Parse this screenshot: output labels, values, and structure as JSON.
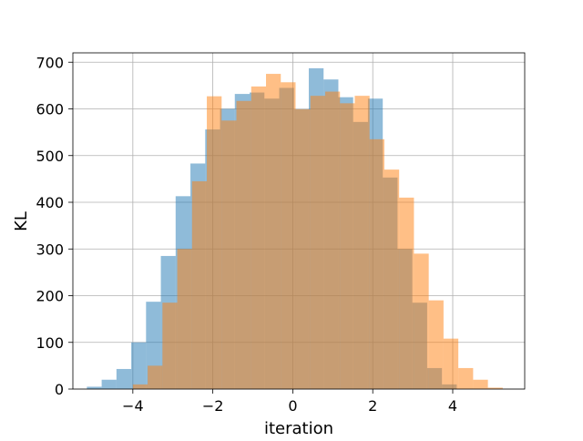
{
  "chart_data": {
    "type": "histogram",
    "title": "",
    "xlabel": "iteration",
    "ylabel": "KL",
    "xlim": [
      -5.5,
      5.8
    ],
    "ylim": [
      0,
      720
    ],
    "xticks": [
      -4,
      -2,
      0,
      2,
      4
    ],
    "xtick_labels": [
      "−4",
      "−2",
      "0",
      "2",
      "4"
    ],
    "yticks": [
      0,
      100,
      200,
      300,
      400,
      500,
      600,
      700
    ],
    "ytick_labels": [
      "0",
      "100",
      "200",
      "300",
      "400",
      "500",
      "600",
      "700"
    ],
    "grid": true,
    "legend": false,
    "series": [
      {
        "color": "#1f77b4",
        "opacity": 0.5,
        "bins": [
          [
            -5.15,
            -4.78,
            5
          ],
          [
            -4.78,
            -4.41,
            20
          ],
          [
            -4.41,
            -4.04,
            43
          ],
          [
            -4.04,
            -3.67,
            100
          ],
          [
            -3.67,
            -3.3,
            187
          ],
          [
            -3.3,
            -2.93,
            285
          ],
          [
            -2.93,
            -2.56,
            413
          ],
          [
            -2.56,
            -2.19,
            483
          ],
          [
            -2.19,
            -1.82,
            556
          ],
          [
            -1.82,
            -1.45,
            600
          ],
          [
            -1.45,
            -1.08,
            632
          ],
          [
            -1.08,
            -0.71,
            635
          ],
          [
            -0.71,
            -0.34,
            622
          ],
          [
            -0.34,
            0.03,
            645
          ],
          [
            0.03,
            0.4,
            599
          ],
          [
            0.4,
            0.77,
            687
          ],
          [
            0.77,
            1.14,
            663
          ],
          [
            1.14,
            1.51,
            625
          ],
          [
            1.51,
            1.88,
            572
          ],
          [
            1.88,
            2.25,
            622
          ],
          [
            2.25,
            2.62,
            453
          ],
          [
            2.62,
            2.99,
            300
          ],
          [
            2.99,
            3.36,
            185
          ],
          [
            3.36,
            3.73,
            45
          ],
          [
            3.73,
            4.1,
            10
          ]
        ]
      },
      {
        "color": "#ff7f0e",
        "opacity": 0.5,
        "bins": [
          [
            -4.0,
            -3.63,
            10
          ],
          [
            -3.63,
            -3.26,
            50
          ],
          [
            -3.26,
            -2.89,
            185
          ],
          [
            -2.89,
            -2.52,
            300
          ],
          [
            -2.52,
            -2.15,
            445
          ],
          [
            -2.15,
            -1.78,
            627
          ],
          [
            -1.78,
            -1.41,
            575
          ],
          [
            -1.41,
            -1.04,
            617
          ],
          [
            -1.04,
            -0.67,
            648
          ],
          [
            -0.67,
            -0.3,
            675
          ],
          [
            -0.3,
            0.07,
            657
          ],
          [
            0.07,
            0.44,
            599
          ],
          [
            0.44,
            0.81,
            628
          ],
          [
            0.81,
            1.18,
            637
          ],
          [
            1.18,
            1.55,
            612
          ],
          [
            1.55,
            1.92,
            628
          ],
          [
            1.92,
            2.29,
            535
          ],
          [
            2.29,
            2.66,
            470
          ],
          [
            2.66,
            3.03,
            410
          ],
          [
            3.03,
            3.4,
            290
          ],
          [
            3.4,
            3.77,
            190
          ],
          [
            3.77,
            4.14,
            108
          ],
          [
            4.14,
            4.51,
            45
          ],
          [
            4.51,
            4.88,
            20
          ],
          [
            4.88,
            5.25,
            3
          ]
        ]
      }
    ]
  }
}
